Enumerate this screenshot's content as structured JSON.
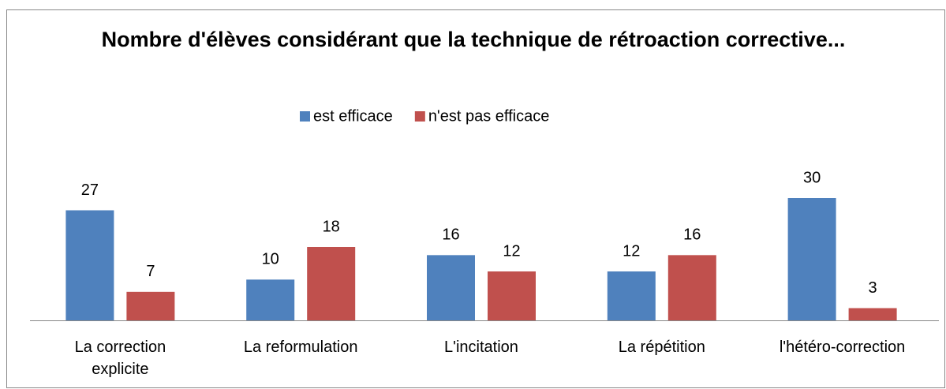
{
  "chart_data": {
    "type": "bar",
    "title": "Nombre d'élèves considérant que la technique de rétroaction corrective...",
    "categories": [
      "La correction explicite",
      "La reformulation",
      "L'incitation",
      "La répétition",
      "l'hétéro-correction"
    ],
    "series": [
      {
        "name": "est efficace",
        "color": "#4f81bd",
        "values": [
          27,
          10,
          16,
          12,
          30
        ]
      },
      {
        "name": "n'est pas efficace",
        "color": "#c0504d",
        "values": [
          7,
          18,
          12,
          16,
          3
        ]
      }
    ],
    "legend": "top"
  }
}
